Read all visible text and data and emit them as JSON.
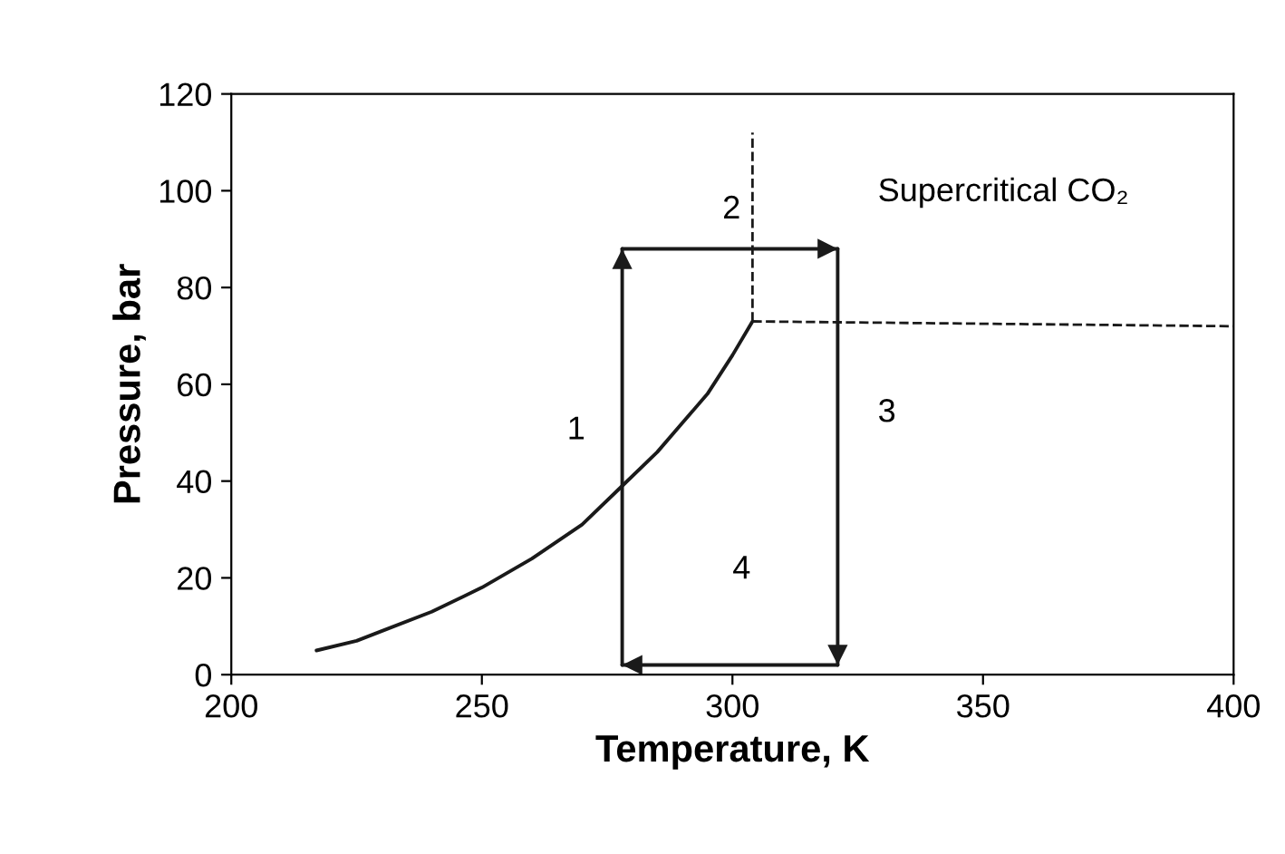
{
  "chart_data": {
    "type": "line",
    "xlabel": "Temperature, K",
    "ylabel": "Pressure, bar",
    "xlim": [
      200,
      400
    ],
    "xticks": [
      200,
      250,
      300,
      350,
      400
    ],
    "ylim": [
      0,
      120
    ],
    "yticks": [
      0,
      20,
      40,
      60,
      80,
      100,
      120
    ],
    "grid": false,
    "legend": false,
    "marker": "none",
    "series": [
      {
        "color": "#1a1a1a",
        "line_style": "solid",
        "x": [
          217,
          225,
          230,
          240,
          250,
          260,
          270,
          278,
          285,
          290,
          295,
          300,
          304
        ],
        "values": [
          5,
          7,
          9,
          13,
          18,
          24,
          31,
          39,
          46,
          52,
          58,
          66,
          73
        ]
      },
      {
        "color": "#1a1a1a",
        "line_style": "dashed",
        "x": [
          304,
          304
        ],
        "values": [
          73,
          112
        ]
      },
      {
        "color": "#1a1a1a",
        "line_style": "dashed",
        "x": [
          304,
          400
        ],
        "values": [
          73,
          72
        ]
      },
      {
        "color": "#1a1a1a",
        "line_style": "solid",
        "x": [
          278,
          278
        ],
        "values": [
          2,
          88
        ]
      },
      {
        "color": "#1a1a1a",
        "line_style": "solid",
        "x": [
          278,
          321
        ],
        "values": [
          88,
          88
        ]
      },
      {
        "color": "#1a1a1a",
        "line_style": "solid",
        "x": [
          321,
          321
        ],
        "values": [
          88,
          2
        ]
      },
      {
        "color": "#1a1a1a",
        "line_style": "solid",
        "x": [
          321,
          278
        ],
        "values": [
          2,
          2
        ]
      }
    ],
    "annotations": [
      "1",
      "2",
      "3",
      "4",
      "Supercritical CO₂"
    ]
  }
}
